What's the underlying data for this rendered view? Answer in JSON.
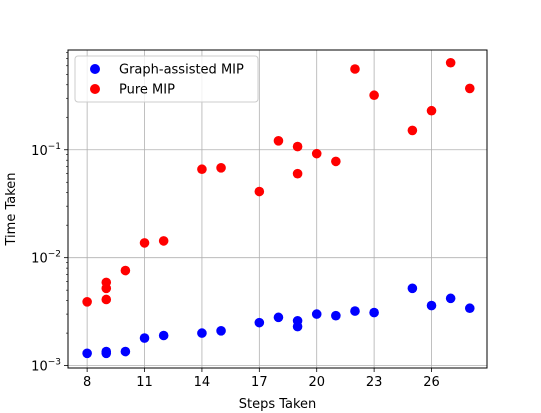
{
  "chart_data": {
    "type": "scatter",
    "title": "",
    "xlabel": "Steps Taken",
    "ylabel": "Time Taken",
    "yscale": "log",
    "xlim": [
      7.0,
      28.9
    ],
    "ylim": [
      0.00095,
      0.84
    ],
    "grid": true,
    "legend_position": "top-left",
    "x_ticks": [
      8,
      11,
      14,
      17,
      20,
      23,
      26
    ],
    "y_ticks": [
      {
        "value": 0.001,
        "base": "10",
        "exp": "−3"
      },
      {
        "value": 0.01,
        "base": "10",
        "exp": "−2"
      },
      {
        "value": 0.1,
        "base": "10",
        "exp": "−1"
      }
    ],
    "series": [
      {
        "name": "Graph-assisted MIP",
        "color": "#0000ff",
        "points": [
          {
            "x": 8,
            "y": 0.0013
          },
          {
            "x": 9,
            "y": 0.0013
          },
          {
            "x": 9,
            "y": 0.00135
          },
          {
            "x": 10,
            "y": 0.00135
          },
          {
            "x": 11,
            "y": 0.0018
          },
          {
            "x": 12,
            "y": 0.0019
          },
          {
            "x": 14,
            "y": 0.002
          },
          {
            "x": 15,
            "y": 0.0021
          },
          {
            "x": 17,
            "y": 0.0025
          },
          {
            "x": 18,
            "y": 0.0028
          },
          {
            "x": 19,
            "y": 0.0026
          },
          {
            "x": 19,
            "y": 0.0023
          },
          {
            "x": 20,
            "y": 0.003
          },
          {
            "x": 21,
            "y": 0.0029
          },
          {
            "x": 22,
            "y": 0.0032
          },
          {
            "x": 23,
            "y": 0.0031
          },
          {
            "x": 25,
            "y": 0.0052
          },
          {
            "x": 26,
            "y": 0.0036
          },
          {
            "x": 27,
            "y": 0.0042
          },
          {
            "x": 28,
            "y": 0.0034
          }
        ]
      },
      {
        "name": "Pure MIP",
        "color": "#ff0000",
        "points": [
          {
            "x": 8,
            "y": 0.0039
          },
          {
            "x": 9,
            "y": 0.0059
          },
          {
            "x": 9,
            "y": 0.0052
          },
          {
            "x": 9,
            "y": 0.0041
          },
          {
            "x": 10,
            "y": 0.0076
          },
          {
            "x": 11,
            "y": 0.0137
          },
          {
            "x": 12,
            "y": 0.0143
          },
          {
            "x": 14,
            "y": 0.066
          },
          {
            "x": 15,
            "y": 0.068
          },
          {
            "x": 17,
            "y": 0.041
          },
          {
            "x": 18,
            "y": 0.121
          },
          {
            "x": 19,
            "y": 0.107
          },
          {
            "x": 19,
            "y": 0.06
          },
          {
            "x": 20,
            "y": 0.092
          },
          {
            "x": 21,
            "y": 0.078
          },
          {
            "x": 22,
            "y": 0.56
          },
          {
            "x": 23,
            "y": 0.32
          },
          {
            "x": 25,
            "y": 0.151
          },
          {
            "x": 26,
            "y": 0.23
          },
          {
            "x": 27,
            "y": 0.64
          },
          {
            "x": 28,
            "y": 0.37
          }
        ]
      }
    ]
  }
}
